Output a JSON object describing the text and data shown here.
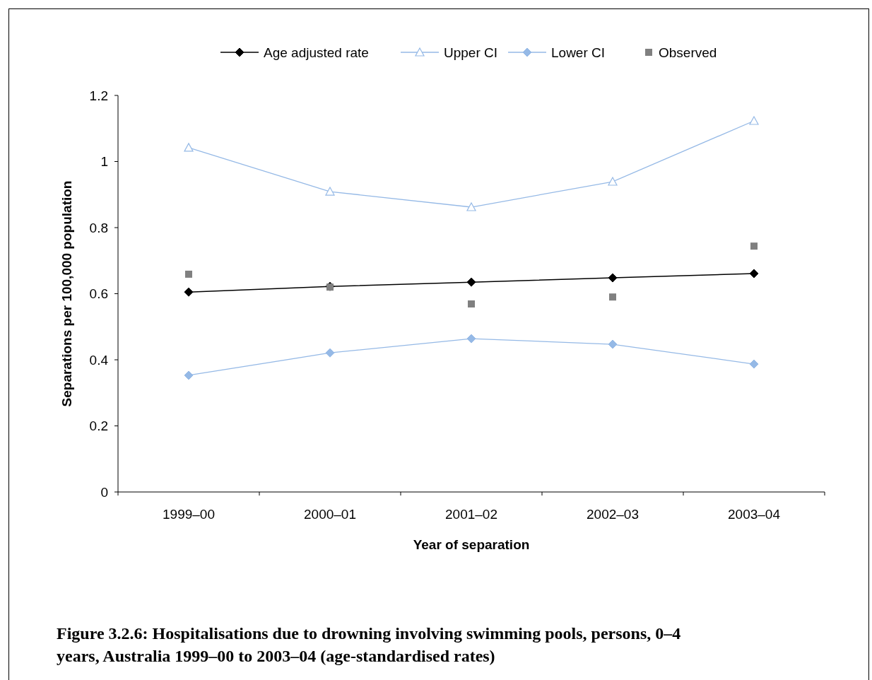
{
  "chart_data": {
    "type": "line",
    "title": "Figure 3.2.6: Hospitalisations due to drowning involving swimming pools, persons, 0–4 years, Australia 1999–00 to 2003–04 (age-standardised rates)",
    "xlabel": "Year of separation",
    "ylabel": "Separations per 100,000 population",
    "categories": [
      "1999–00",
      "2000–01",
      "2001–02",
      "2002–03",
      "2003–04"
    ],
    "series": [
      {
        "name": "Age adjusted rate",
        "color": "#000000",
        "marker": "diamond",
        "values": [
          0.605,
          0.622,
          0.635,
          0.648,
          0.661
        ]
      },
      {
        "name": "Upper CI",
        "color": "#95b9e6",
        "marker": "triangle",
        "values": [
          1.042,
          0.909,
          0.862,
          0.939,
          1.123
        ]
      },
      {
        "name": "Lower CI",
        "color": "#95b9e6",
        "marker": "diamond",
        "values": [
          0.353,
          0.421,
          0.464,
          0.447,
          0.387
        ]
      },
      {
        "name": "Observed",
        "type": "scatter",
        "color": "#808080",
        "marker": "square",
        "values": [
          0.659,
          0.62,
          0.569,
          0.59,
          0.744
        ]
      }
    ],
    "ylim": [
      0,
      1.2
    ],
    "yticks": [
      0,
      0.2,
      0.4,
      0.6,
      0.8,
      1,
      1.2
    ],
    "legend": "top",
    "grid": false
  }
}
